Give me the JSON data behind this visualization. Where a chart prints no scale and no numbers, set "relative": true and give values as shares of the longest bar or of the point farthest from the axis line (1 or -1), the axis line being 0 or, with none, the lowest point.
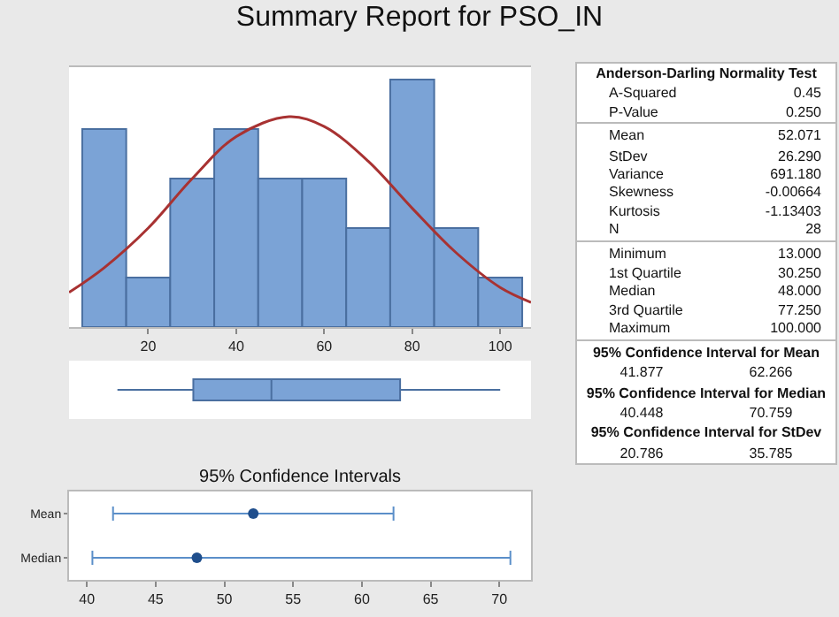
{
  "chart_data": [
    {
      "type": "histogram",
      "title": "Summary Report for PSO_IN",
      "relative": true,
      "bins": [
        5,
        15,
        25,
        35,
        45,
        55,
        65,
        75,
        85,
        95,
        105
      ],
      "values": [
        0.8,
        0.2,
        0.6,
        0.8,
        0.6,
        0.6,
        0.4,
        1,
        0.4,
        0.2
      ],
      "color": "#7ba3d6",
      "xlim": [
        2,
        107
      ],
      "xticks": [
        20,
        40,
        60,
        80,
        100
      ],
      "tick_labels": "x",
      "series": [
        {
          "type": "line",
          "color": "#a83232",
          "x": [
            2,
            10,
            20,
            30,
            40,
            52,
            60,
            70,
            80,
            90,
            100,
            107
          ],
          "values": [
            0.14,
            0.24,
            0.4,
            0.6,
            0.77,
            0.85,
            0.81,
            0.67,
            0.48,
            0.3,
            0.16,
            0.1
          ]
        }
      ]
    },
    {
      "type": "box",
      "orientation": "horizontal",
      "color": "#7ba3d6",
      "xlim": [
        2,
        107
      ],
      "tick_labels": false,
      "boxes": [
        {
          "low": 13,
          "q1": 30.25,
          "median": 48,
          "q3": 77.25,
          "high": 100
        }
      ]
    },
    {
      "type": "scatter",
      "title": "95% Confidence Intervals",
      "orientation": "horizontal",
      "categories": [
        "Mean",
        "Median"
      ],
      "values": [
        52.1,
        48
      ],
      "errors": [
        [
          41.9,
          62.3
        ],
        [
          40.4,
          70.8
        ]
      ],
      "color": "#1f4e8c",
      "marker": "circle",
      "xlim": [
        38.7,
        72.3
      ],
      "xticks": [
        40,
        45,
        50,
        55,
        60,
        65,
        70
      ]
    },
    {
      "type": "other",
      "annotations": [
        "Anderson-Darling Normality Test",
        "95% Confidence Interval for Mean",
        "41.877",
        "62.266",
        "95% Confidence Interval for Median",
        "40.448",
        "70.759",
        "95% Confidence Interval for StDev",
        "20.786",
        "35.785"
      ],
      "categories": [
        "A-Squared",
        "P-Value",
        "Mean",
        "StDev",
        "Variance",
        "Skewness",
        "Kurtosis",
        "N",
        "Minimum",
        "1st Quartile",
        "Median",
        "3rd Quartile",
        "Maximum"
      ],
      "value_labels": [
        "0.45",
        "0.250",
        "52.071",
        "26.290",
        "691.180",
        "-0.00664",
        "-1.13403",
        "28",
        "13.000",
        "30.250",
        "48.000",
        "77.250",
        "100.000"
      ]
    }
  ]
}
